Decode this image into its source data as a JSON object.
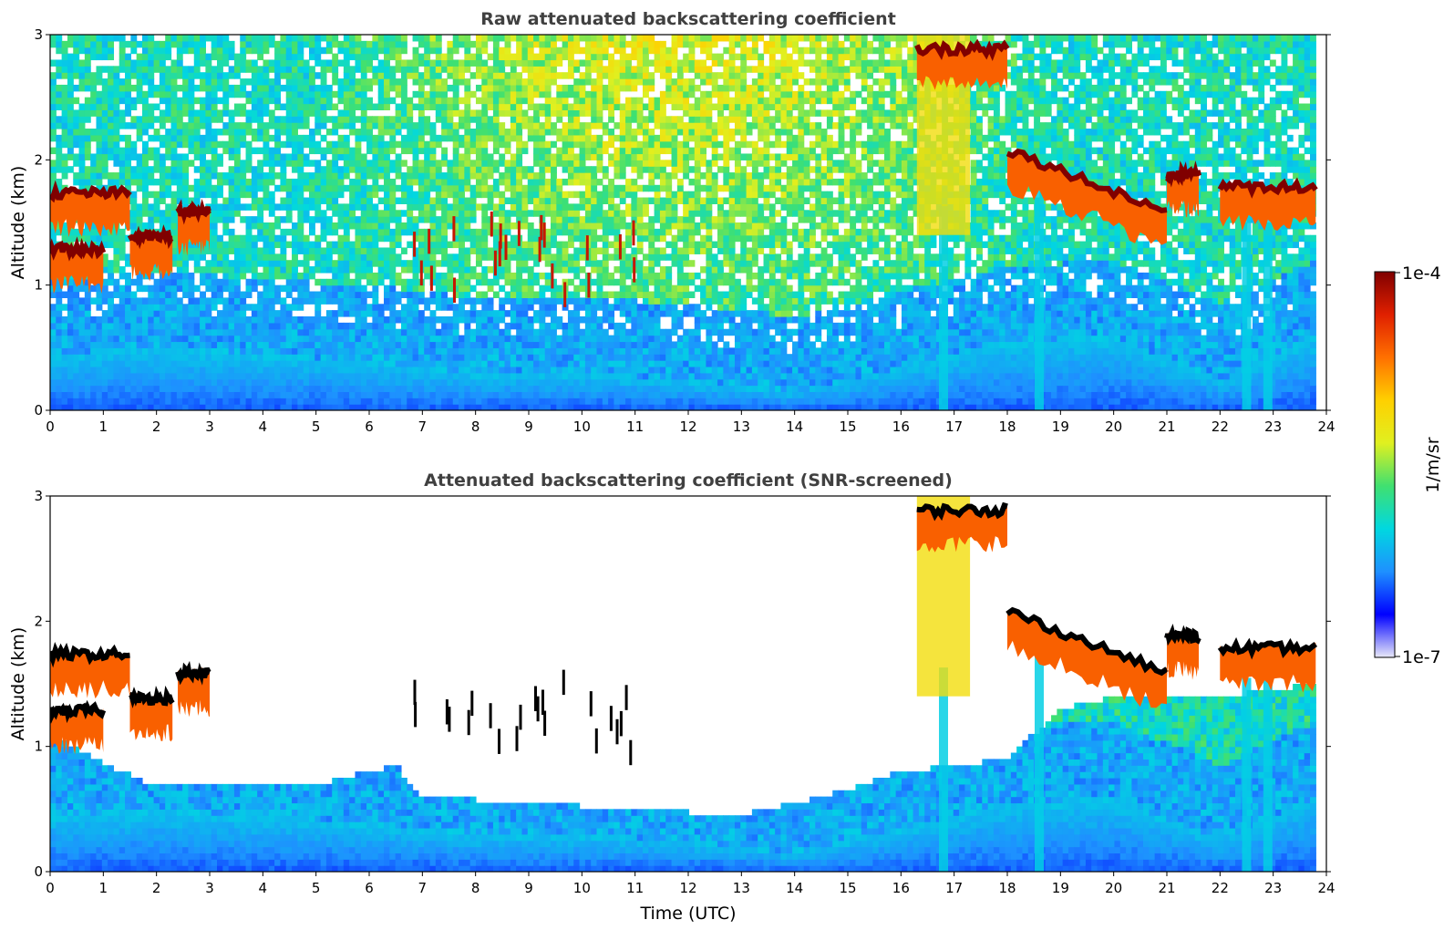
{
  "chart_data": [
    {
      "type": "heatmap",
      "title": "Raw attenuated backscattering coefficient",
      "xlabel": "",
      "ylabel": "Altitude (km)",
      "xlim": [
        0,
        24
      ],
      "ylim": [
        0,
        3
      ],
      "x_ticks": [
        "0",
        "1",
        "2",
        "3",
        "4",
        "5",
        "6",
        "7",
        "8",
        "9",
        "10",
        "11",
        "12",
        "13",
        "14",
        "15",
        "16",
        "17",
        "18",
        "19",
        "20",
        "21",
        "22",
        "23",
        "24"
      ],
      "y_ticks": [
        "0",
        "1",
        "2",
        "3"
      ],
      "data_end_hour": 23.8,
      "boundary_layer_top_km": [
        [
          0,
          0.45
        ],
        [
          2,
          0.5
        ],
        [
          4,
          0.45
        ],
        [
          6,
          0.4
        ],
        [
          8,
          0.3
        ],
        [
          10,
          0.3
        ],
        [
          12,
          0.25
        ],
        [
          14,
          0.15
        ],
        [
          16,
          0.35
        ],
        [
          18,
          0.55
        ],
        [
          20,
          0.6
        ],
        [
          22,
          0.25
        ],
        [
          23.8,
          0.6
        ]
      ],
      "noise_background": "speckled light-blue to yellow, increasing with altitude and daytime",
      "cloud_layers": [
        {
          "x_start": 0.0,
          "x_end": 1.5,
          "altitude_km": 1.65
        },
        {
          "x_start": 0.0,
          "x_end": 1.0,
          "altitude_km": 1.2
        },
        {
          "x_start": 1.5,
          "x_end": 2.3,
          "altitude_km": 1.3
        },
        {
          "x_start": 2.4,
          "x_end": 3.0,
          "altitude_km": 1.5
        },
        {
          "x_start": 6.8,
          "x_end": 11.0,
          "altitude_km": 1.2,
          "note": "scattered cumulus"
        },
        {
          "x_start": 16.3,
          "x_end": 18.0,
          "altitude_km": 2.8
        },
        {
          "x_start": 18.0,
          "x_end": 21.0,
          "altitude_km": 2.0,
          "note": "descending to 1.5 km"
        },
        {
          "x_start": 21.0,
          "x_end": 21.6,
          "altitude_km": 1.8
        },
        {
          "x_start": 22.0,
          "x_end": 23.8,
          "altitude_km": 1.7
        }
      ],
      "precipitation_shafts_hours": [
        16.8,
        18.6,
        22.5,
        22.9
      ]
    },
    {
      "type": "heatmap",
      "title": "Attenuated backscattering coefficient (SNR-screened)",
      "xlabel": "Time (UTC)",
      "ylabel": "Altitude (km)",
      "xlim": [
        0,
        24
      ],
      "ylim": [
        0,
        3
      ],
      "x_ticks": [
        "0",
        "1",
        "2",
        "3",
        "4",
        "5",
        "6",
        "7",
        "8",
        "9",
        "10",
        "11",
        "12",
        "13",
        "14",
        "15",
        "16",
        "17",
        "18",
        "19",
        "20",
        "21",
        "22",
        "23",
        "24"
      ],
      "y_ticks": [
        "0",
        "1",
        "2",
        "3"
      ],
      "data_end_hour": 23.8,
      "screened_top_km": [
        [
          0,
          1.1
        ],
        [
          1.8,
          0.7
        ],
        [
          3,
          0.7
        ],
        [
          5,
          0.7
        ],
        [
          6.5,
          0.85
        ],
        [
          7,
          0.6
        ],
        [
          9,
          0.55
        ],
        [
          11,
          0.5
        ],
        [
          13,
          0.45
        ],
        [
          15,
          0.65
        ],
        [
          16,
          0.8
        ],
        [
          18,
          0.9
        ],
        [
          19,
          1.3
        ],
        [
          20,
          1.4
        ],
        [
          22,
          1.4
        ],
        [
          23.8,
          1.5
        ]
      ],
      "note": "same cloud features as raw panel; cloud tops shown in black where signal saturates"
    }
  ],
  "colorbar": {
    "label": "1/m/sr",
    "tick_max": "1e-4",
    "tick_min": "1e-7",
    "scale": "log",
    "colormap": [
      "#e8e8f8",
      "#0000ff",
      "#1e90ff",
      "#00d8e0",
      "#40e070",
      "#e0f020",
      "#ffd000",
      "#ff7000",
      "#e02000",
      "#800000"
    ]
  }
}
